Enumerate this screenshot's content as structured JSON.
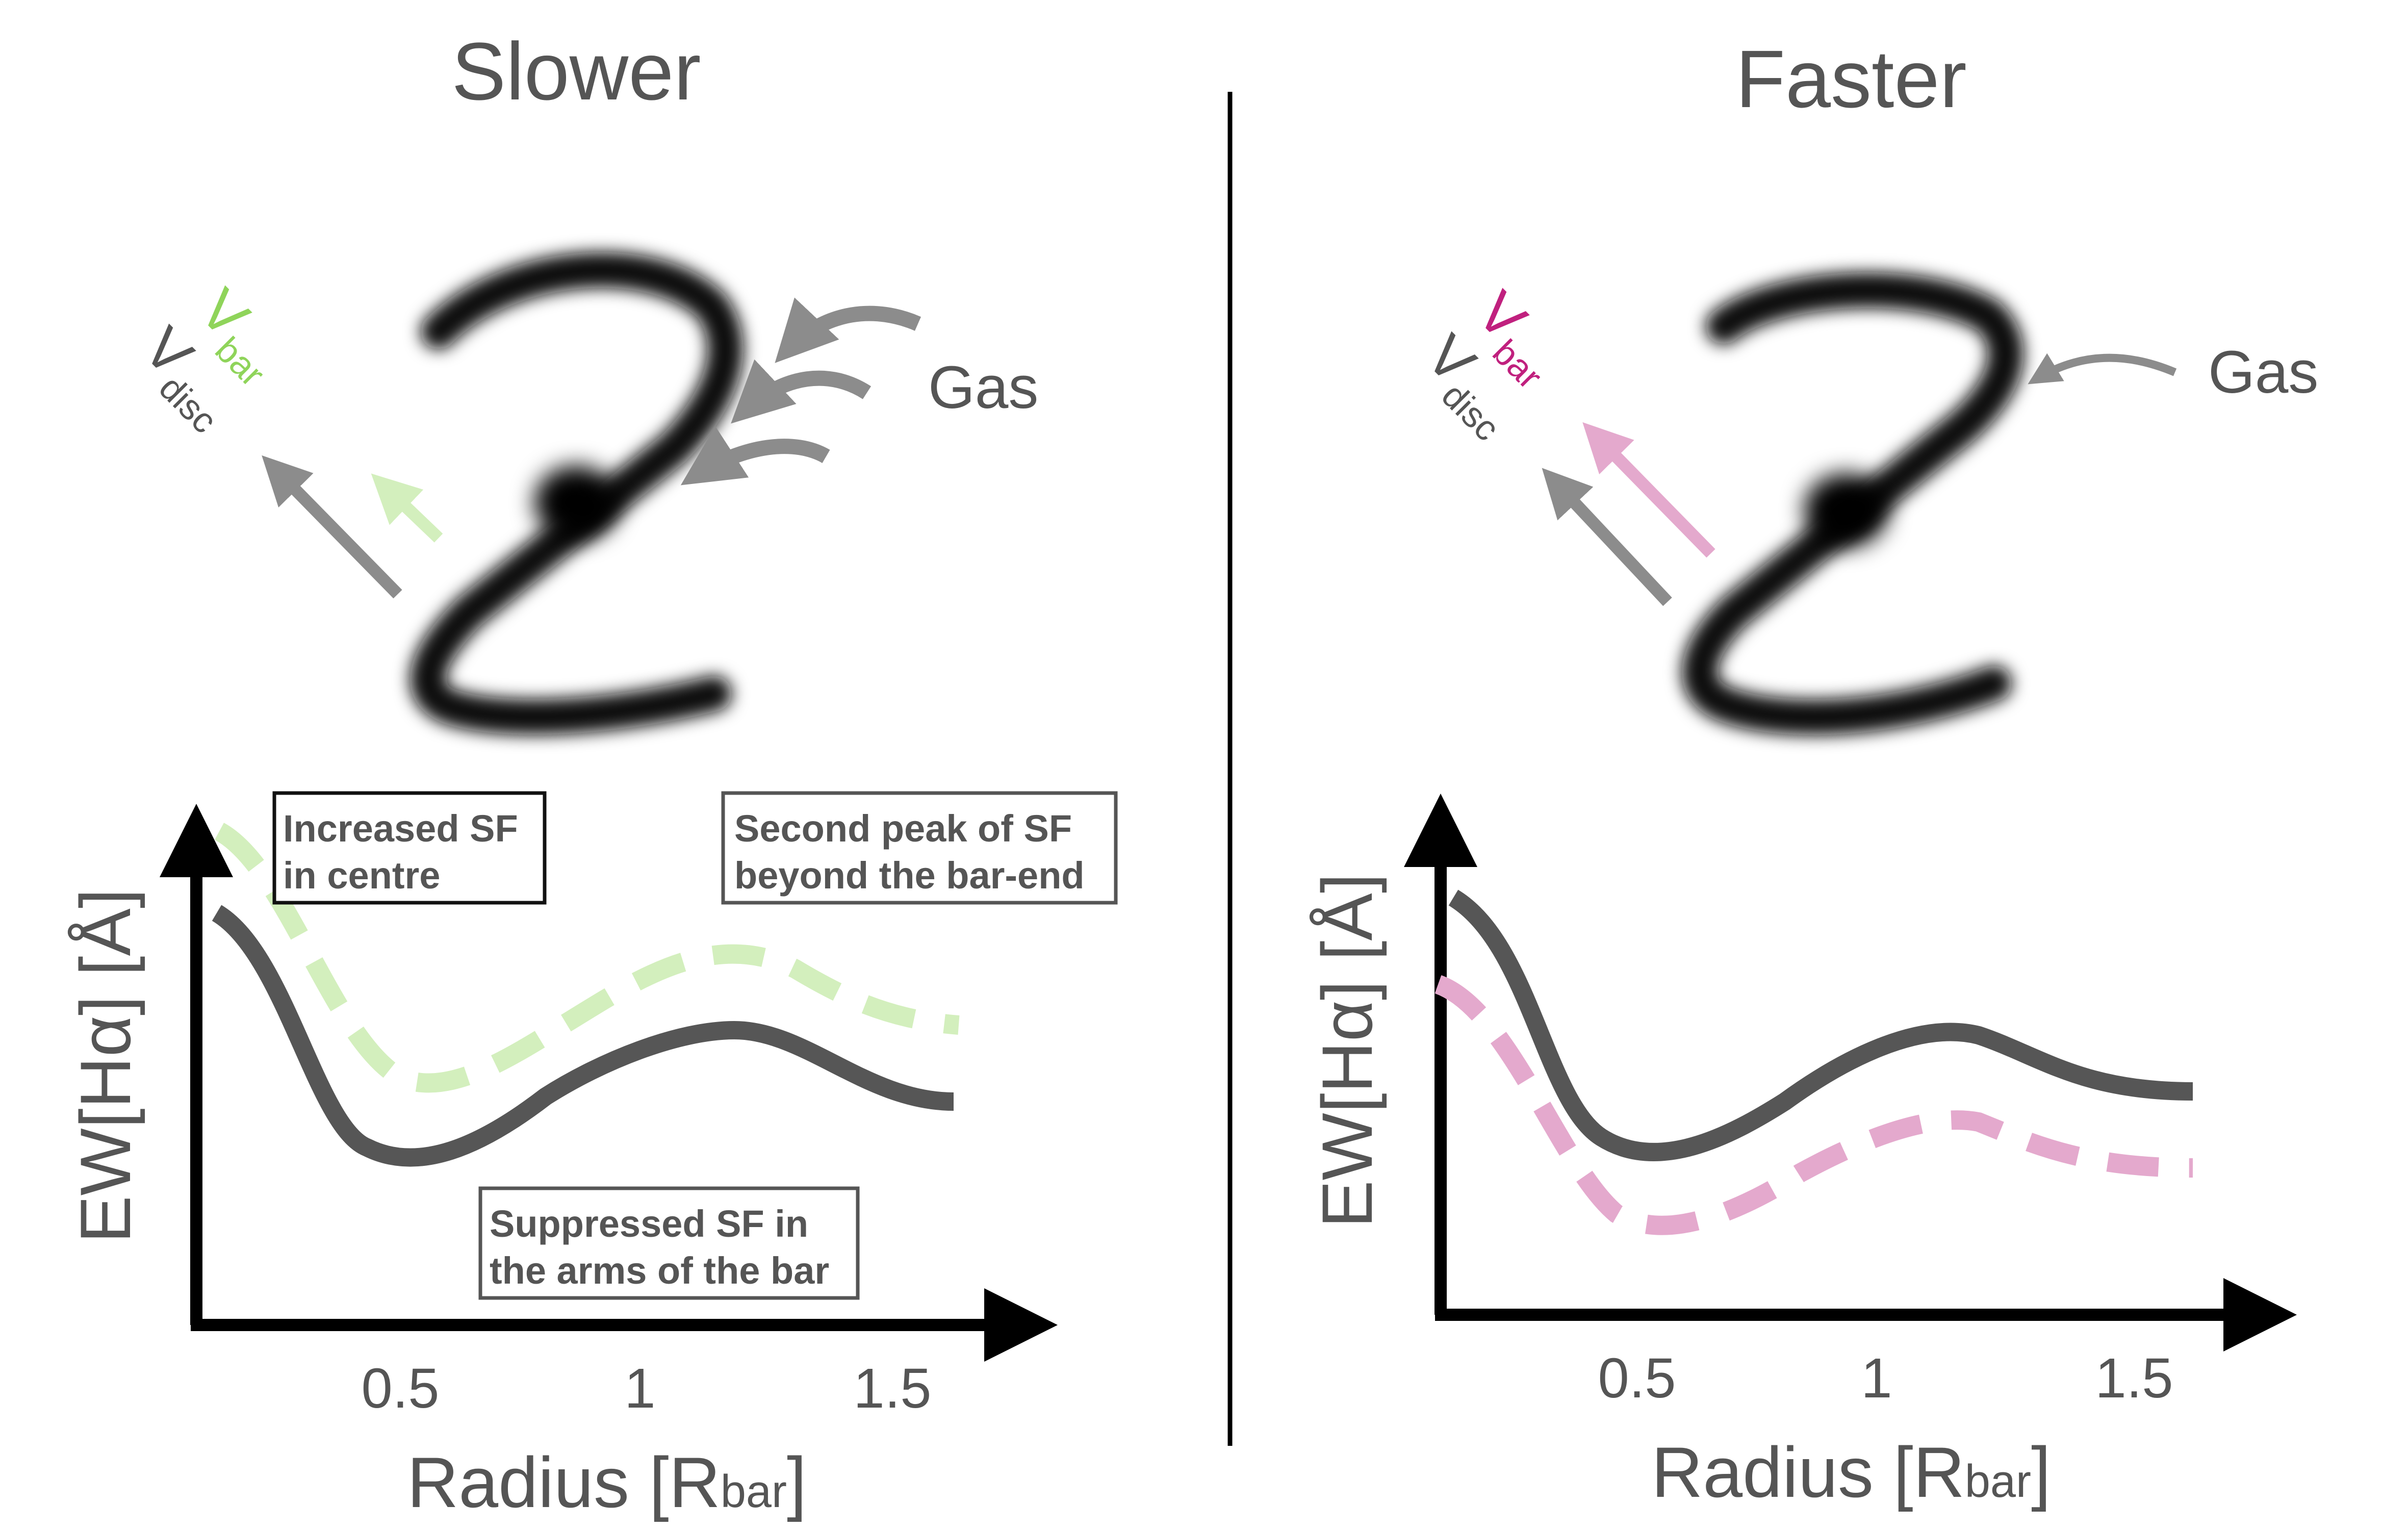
{
  "panels": [
    {
      "title": "Slower",
      "gas_label": "Gas",
      "vbar_main": "V",
      "vbar_sub": "bar",
      "vdisc_main": "V",
      "vdisc_sub": "disc",
      "accent_color": "#8fd45a",
      "accent_light": "#d3efbd",
      "ylabel": "EW[Hα] [Å]",
      "xlabel_main": "Radius [R",
      "xlabel_sub": "bar",
      "xlabel_end": "]",
      "xticks": [
        "0.5",
        "1",
        "1.5"
      ],
      "annotations": [
        {
          "line1": "Increased SF",
          "line2": "in centre"
        },
        {
          "line1": "Second peak of SF",
          "line2": "beyond the bar-end"
        },
        {
          "line1": "Suppressed SF in",
          "line2": "the arms of the bar"
        }
      ]
    },
    {
      "title": "Faster",
      "gas_label": "Gas",
      "vbar_main": "V",
      "vbar_sub": "bar",
      "vdisc_main": "V",
      "vdisc_sub": "disc",
      "accent_color": "#c0207e",
      "accent_light": "#e4a9cd",
      "ylabel": "EW[Hα] [Å]",
      "xlabel_main": "Radius [R",
      "xlabel_sub": "bar",
      "xlabel_end": "]",
      "xticks": [
        "0.5",
        "1",
        "1.5"
      ]
    }
  ],
  "colors": {
    "text_gray": "#555555",
    "arrow_gray": "#8c8c8c",
    "curve_dark": "#565656",
    "axis": "#000000"
  }
}
